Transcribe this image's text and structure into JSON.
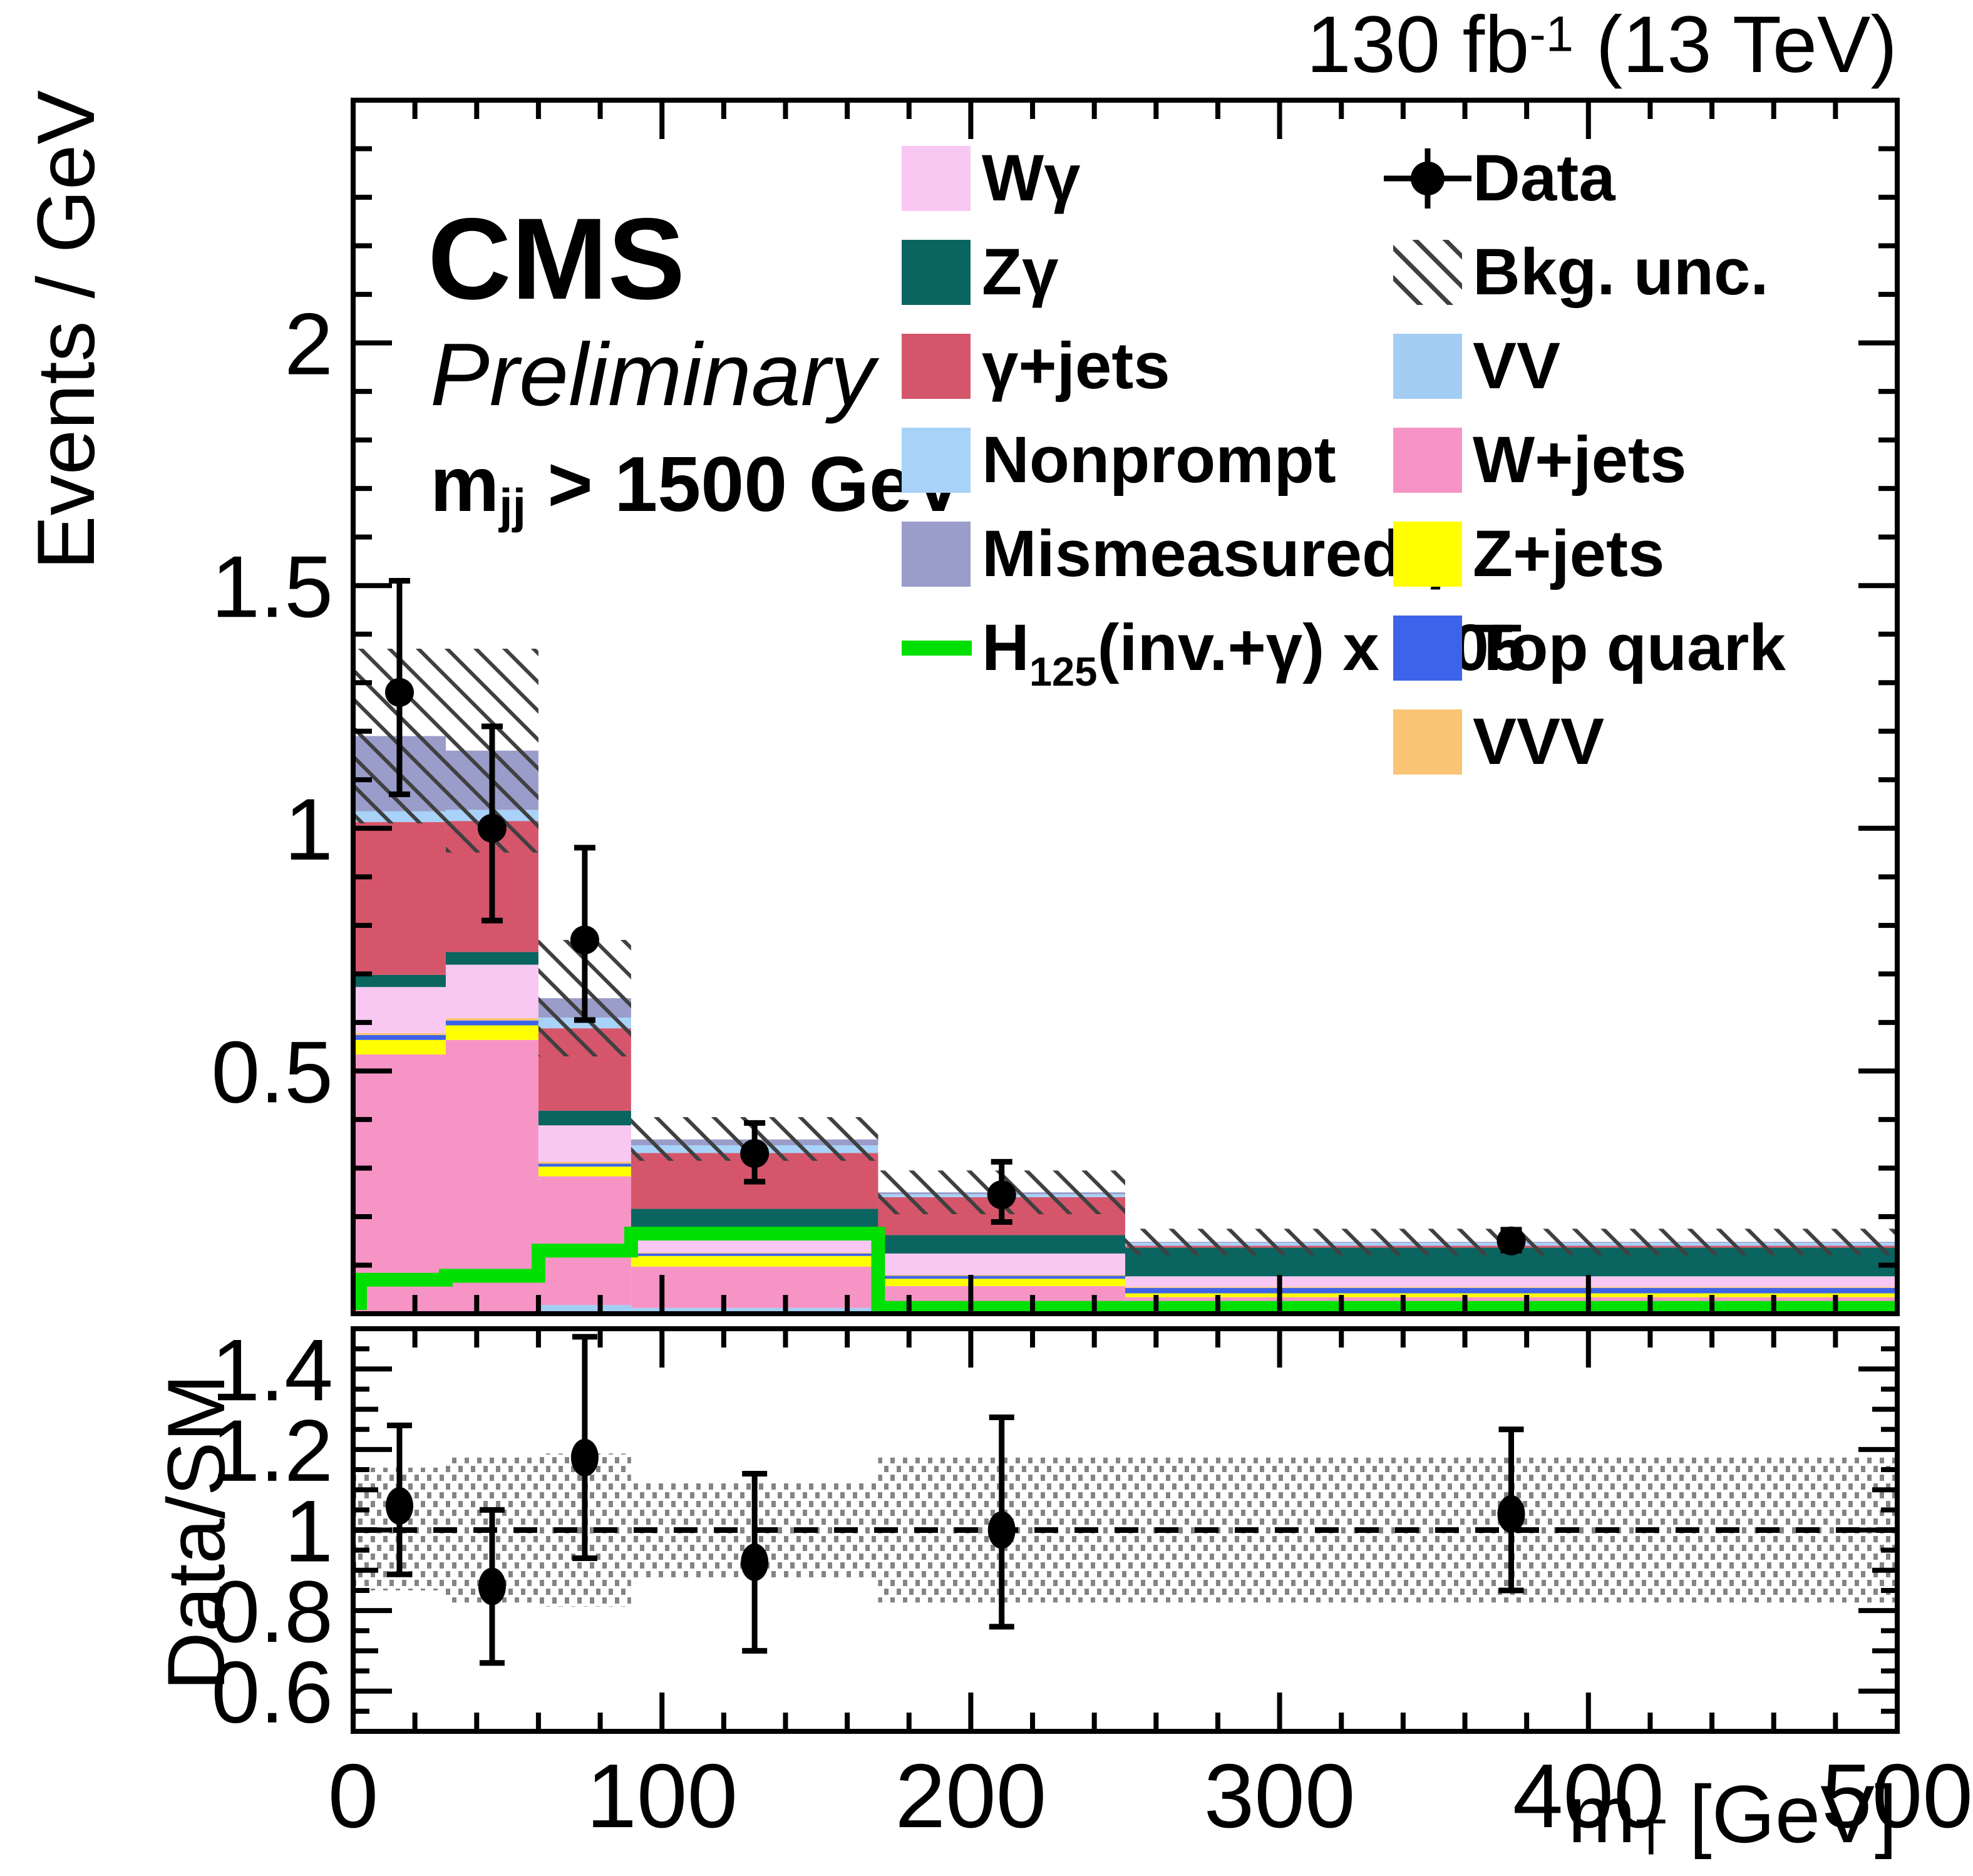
{
  "header": {
    "lumi": {
      "pre": "130 fb",
      "sup": "-1",
      "post": " (13 TeV)"
    },
    "experiment": "CMS",
    "status": "Preliminary",
    "selection": {
      "pre": "m",
      "sub": "jj",
      "post": " > 1500 GeV"
    }
  },
  "axis_titles": {
    "main_y": "Events / GeV",
    "ratio_y": "Data/SM",
    "x": {
      "pre": "m",
      "sub": "T",
      "post": " [GeV]"
    }
  },
  "legend": {
    "left": [
      {
        "key": "wgamma",
        "label": "Wγ",
        "swatch": "box",
        "color": "#f8c8f2"
      },
      {
        "key": "zgamma",
        "label": "Zγ",
        "swatch": "box",
        "color": "#0a6560"
      },
      {
        "key": "gamma-jets",
        "label": "γ+jets",
        "swatch": "box",
        "color": "#d5566b"
      },
      {
        "key": "nonprompt",
        "label": "Nonprompt",
        "swatch": "box",
        "color": "#a8d2f8"
      },
      {
        "key": "mismeasured-gamma",
        "label": "Mismeasured γ",
        "swatch": "box",
        "color": "#9a9cc9"
      },
      {
        "key": "signal",
        "label": {
          "pre": "H",
          "sub": "125",
          "post": "(inv.+γ) x 0.05"
        },
        "swatch": "line",
        "color": "#00e000"
      }
    ],
    "right": [
      {
        "key": "data",
        "label": "Data",
        "swatch": "marker",
        "color": "#000000"
      },
      {
        "key": "bkg-unc",
        "label": "Bkg. unc.",
        "swatch": "hatch",
        "color": "#404040"
      },
      {
        "key": "vv",
        "label": "VV",
        "swatch": "box",
        "color": "#a4cdf4"
      },
      {
        "key": "wjets",
        "label": "W+jets",
        "swatch": "box",
        "color": "#f794c6"
      },
      {
        "key": "zjets",
        "label": "Z+jets",
        "swatch": "box",
        "color": "#ffff00"
      },
      {
        "key": "top-quark",
        "label": "Top quark",
        "swatch": "box",
        "color": "#3c63e9"
      },
      {
        "key": "vvv",
        "label": "VVV",
        "swatch": "box",
        "color": "#fac475"
      }
    ]
  },
  "chart_data": {
    "type": "bar",
    "subtype": "stacked-histogram-with-ratio",
    "title": "130 fb-1 (13 TeV)",
    "bin_edges": [
      0,
      30,
      60,
      90,
      170,
      250,
      500
    ],
    "bin_centers": [
      15,
      45,
      75,
      130,
      210,
      375
    ],
    "series": [
      {
        "name": "VV",
        "color": "#a4cdf4",
        "values": [
          0.004,
          0.004,
          0.018,
          0.012,
          0.012,
          0.012
        ]
      },
      {
        "name": "W+jets",
        "color": "#f794c6",
        "values": [
          0.53,
          0.56,
          0.265,
          0.085,
          0.045,
          0.022
        ]
      },
      {
        "name": "Z+jets",
        "color": "#ffff00",
        "values": [
          0.03,
          0.03,
          0.02,
          0.022,
          0.015,
          0.008
        ]
      },
      {
        "name": "Top quark",
        "color": "#3c63e9",
        "values": [
          0.01,
          0.01,
          0.006,
          0.005,
          0.006,
          0.011
        ]
      },
      {
        "name": "VVV",
        "color": "#fac475",
        "values": [
          0.004,
          0.005,
          0.004,
          0.002,
          0.002,
          0.002
        ]
      },
      {
        "name": "Wγ",
        "color": "#f8c8f2",
        "values": [
          0.095,
          0.11,
          0.075,
          0.04,
          0.044,
          0.022
        ]
      },
      {
        "name": "Zγ",
        "color": "#0a6560",
        "values": [
          0.025,
          0.026,
          0.03,
          0.05,
          0.038,
          0.059
        ]
      },
      {
        "name": "γ+jets",
        "color": "#d5566b",
        "values": [
          0.315,
          0.27,
          0.17,
          0.115,
          0.078,
          0.004
        ]
      },
      {
        "name": "Nonprompt",
        "color": "#a8d2f8",
        "values": [
          0.022,
          0.023,
          0.022,
          0.016,
          0.006,
          0.006
        ]
      },
      {
        "name": "Mismeasured γ",
        "color": "#9a9cc9",
        "values": [
          0.155,
          0.122,
          0.04,
          0.012,
          0.004,
          0.002
        ]
      }
    ],
    "totals": [
      1.19,
      1.16,
      0.65,
      0.359,
      0.25,
      0.148
    ],
    "signal": {
      "name": "H125(inv.+γ) x 0.05",
      "color": "#00e000",
      "values": [
        0.07,
        0.078,
        0.13,
        0.165,
        0.012,
        0.012
      ]
    },
    "bkg_unc": {
      "low": [
        1.01,
        0.95,
        0.53,
        0.315,
        0.205,
        0.121
      ],
      "high": [
        1.37,
        1.37,
        0.77,
        0.405,
        0.295,
        0.175
      ]
    },
    "data_points": {
      "y": [
        1.28,
        1.0,
        0.77,
        0.33,
        0.245,
        0.15
      ],
      "err_up": [
        0.23,
        0.21,
        0.19,
        0.063,
        0.068,
        0.023
      ],
      "err_down": [
        0.21,
        0.19,
        0.165,
        0.058,
        0.056,
        0.02
      ]
    },
    "ratio": {
      "y": [
        1.06,
        0.86,
        1.18,
        0.92,
        1.0,
        1.04
      ],
      "err_up": [
        0.2,
        0.19,
        0.3,
        0.22,
        0.28,
        0.21
      ],
      "err_down": [
        0.17,
        0.19,
        0.25,
        0.22,
        0.24,
        0.19
      ],
      "band_low": [
        0.85,
        0.82,
        0.81,
        0.88,
        0.82,
        0.82
      ],
      "band_high": [
        1.155,
        1.18,
        1.19,
        1.12,
        1.18,
        1.18
      ]
    },
    "main_y": {
      "label": "Events / GeV",
      "min": 0,
      "max": 2.5,
      "major_ticks": [
        0.5,
        1,
        1.5,
        2
      ],
      "minor_step": 0.1
    },
    "ratio_y": {
      "label": "Data/SM",
      "min": 0.5,
      "max": 1.5,
      "major_ticks": [
        0.6,
        0.8,
        1,
        1.2,
        1.4
      ],
      "minor_step": 0.05
    },
    "x": {
      "label": "m_T [GeV]",
      "min": 0,
      "max": 500,
      "major_ticks": [
        0,
        100,
        200,
        300,
        400,
        500
      ],
      "minor_step": 20
    },
    "colors": {
      "hatch": "#404040",
      "ratio_band": "#848484",
      "data": "#000000",
      "frame": "#000000"
    }
  }
}
